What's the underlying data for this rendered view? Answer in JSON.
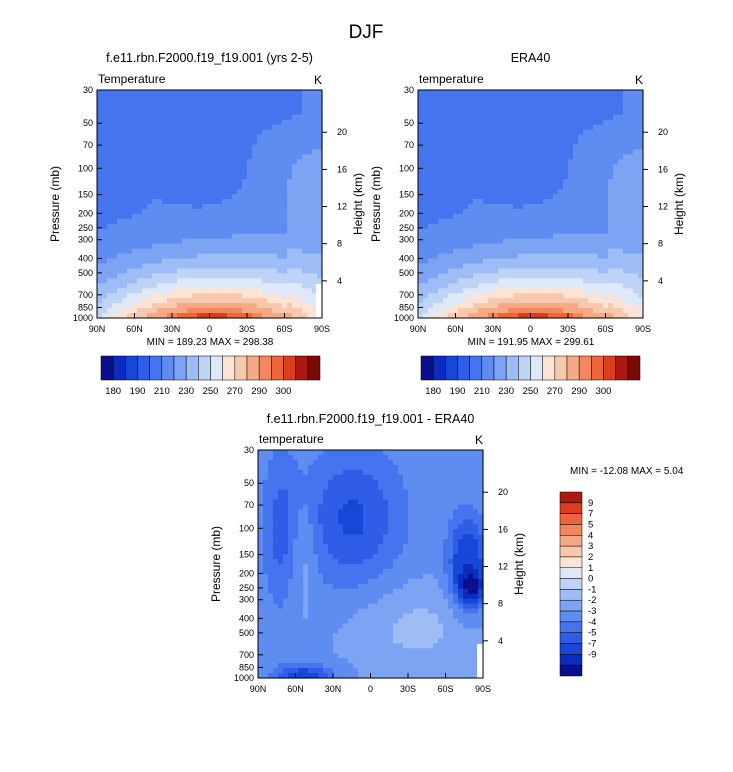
{
  "season_title": "DJF",
  "chart_data": [
    {
      "type": "heatmap",
      "title": "f.e11.rbn.F2000.f19_f19.001 (yrs 2-5)",
      "variable_label": "Temperature",
      "units": "K",
      "ylabel": "Pressure (mb)",
      "ylabel_right": "Height (km)",
      "xlabel": "",
      "x_ticks": [
        "90N",
        "60N",
        "30N",
        "0",
        "30S",
        "60S",
        "90S"
      ],
      "y_ticks": [
        "30",
        "50",
        "70",
        "100",
        "150",
        "200",
        "250",
        "300",
        "400",
        "500",
        "700",
        "850",
        "1000"
      ],
      "y_ticks_right": [
        "20",
        "16",
        "12",
        "8",
        "4"
      ],
      "stats": "MIN = 189.23  MAX = 298.38",
      "min": 189.23,
      "max": 298.38,
      "colorbar_labels": [
        "180",
        "190",
        "210",
        "230",
        "250",
        "270",
        "290",
        "300"
      ],
      "colorbar_levels": [
        180,
        185,
        190,
        200,
        210,
        220,
        230,
        240,
        250,
        260,
        270,
        280,
        290,
        295,
        300
      ]
    },
    {
      "type": "heatmap",
      "title": "ERA40",
      "variable_label": "temperature",
      "units": "K",
      "ylabel": "Pressure (mb)",
      "ylabel_right": "Height (km)",
      "xlabel": "",
      "x_ticks": [
        "90N",
        "60N",
        "30N",
        "0",
        "30S",
        "60S",
        "90S"
      ],
      "y_ticks": [
        "30",
        "50",
        "70",
        "100",
        "150",
        "200",
        "250",
        "300",
        "400",
        "500",
        "700",
        "850",
        "1000"
      ],
      "y_ticks_right": [
        "20",
        "16",
        "12",
        "8",
        "4"
      ],
      "stats": "MIN = 191.95  MAX = 299.61",
      "min": 191.95,
      "max": 299.61,
      "colorbar_labels": [
        "180",
        "190",
        "210",
        "230",
        "250",
        "270",
        "290",
        "300"
      ],
      "colorbar_levels": [
        180,
        185,
        190,
        200,
        210,
        220,
        230,
        240,
        250,
        260,
        270,
        280,
        290,
        295,
        300
      ]
    },
    {
      "type": "heatmap",
      "title": "f.e11.rbn.F2000.f19_f19.001 - ERA40",
      "variable_label": "temperature",
      "units": "K",
      "ylabel": "Pressure (mb)",
      "ylabel_right": "Height (km)",
      "xlabel": "",
      "x_ticks": [
        "90N",
        "60N",
        "30N",
        "0",
        "30S",
        "60S",
        "90S"
      ],
      "y_ticks": [
        "30",
        "50",
        "70",
        "100",
        "150",
        "200",
        "250",
        "300",
        "400",
        "500",
        "700",
        "850",
        "1000"
      ],
      "y_ticks_right": [
        "20",
        "16",
        "12",
        "8",
        "4"
      ],
      "stats": "MIN = -12.08  MAX =   5.04",
      "min": -12.08,
      "max": 5.04,
      "colorbar_labels": [
        "9",
        "7",
        "5",
        "4",
        "3",
        "2",
        "1",
        "0",
        "-1",
        "-2",
        "-3",
        "-4",
        "-5",
        "-7",
        "-9"
      ],
      "colorbar_levels": [
        -9,
        -7,
        -5,
        -4,
        -3,
        -2,
        -1,
        0,
        1,
        2,
        3,
        4,
        5,
        7,
        9
      ]
    }
  ],
  "colors": {
    "temperature_scale": [
      "#0c0f8a",
      "#0b2dbf",
      "#1747d8",
      "#2f5de8",
      "#4475ee",
      "#5f8cf1",
      "#7da3f3",
      "#9ebcf5",
      "#bed3f6",
      "#dfe8f8",
      "#fbe4d6",
      "#f8c8ad",
      "#f5a884",
      "#f2865c",
      "#ee6539",
      "#dc3d1c",
      "#aa1a0f",
      "#7d0a06"
    ],
    "difference_scale": [
      "#0c0f8a",
      "#0b2dbf",
      "#1747d8",
      "#2f5de8",
      "#4475ee",
      "#5f8cf1",
      "#7da3f3",
      "#9ebcf5",
      "#bed3f6",
      "#dfe8f8",
      "#fbe4d6",
      "#f8c8ad",
      "#f5a884",
      "#f2865c",
      "#ee6539",
      "#dc3d1c",
      "#aa1a0f"
    ]
  }
}
